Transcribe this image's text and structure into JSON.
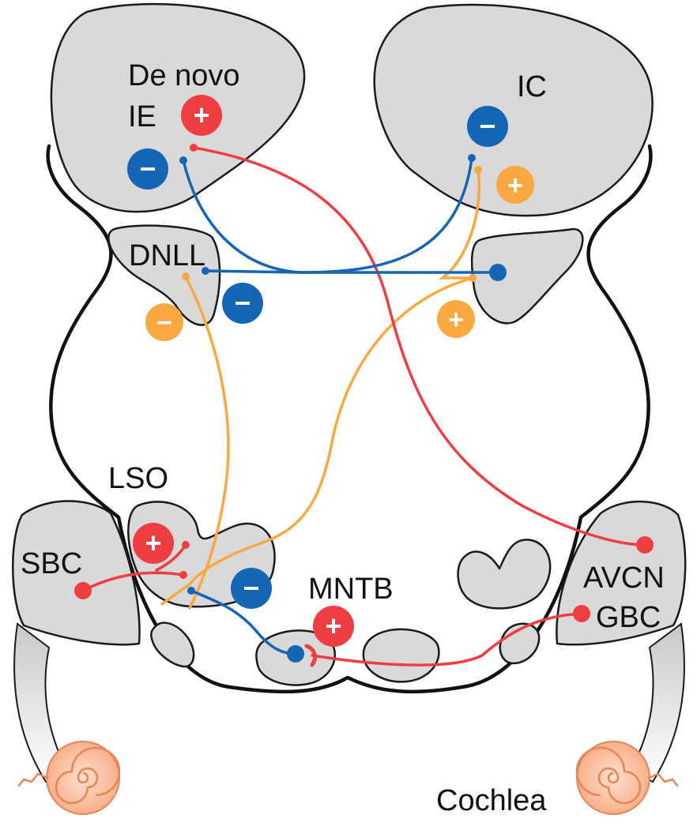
{
  "labels": {
    "de_novo_line1": "De novo",
    "de_novo_line2": "IE",
    "ic": "IC",
    "dnll": "DNLL",
    "lso": "LSO",
    "sbc": "SBC",
    "mntb": "MNTB",
    "avcn": "AVCN",
    "gbc": "GBC",
    "cochlea": "Cochlea"
  },
  "signs": {
    "plus": "+",
    "minus": "−"
  },
  "colors": {
    "excitatory_red": "#ef3e42",
    "inhibitory_blue": "#1466b4",
    "dnll_orange": "#f9a842",
    "region_gray": "#d9d9d9",
    "cochlea_peach": "#f7a67c",
    "outline": "#111111"
  }
}
